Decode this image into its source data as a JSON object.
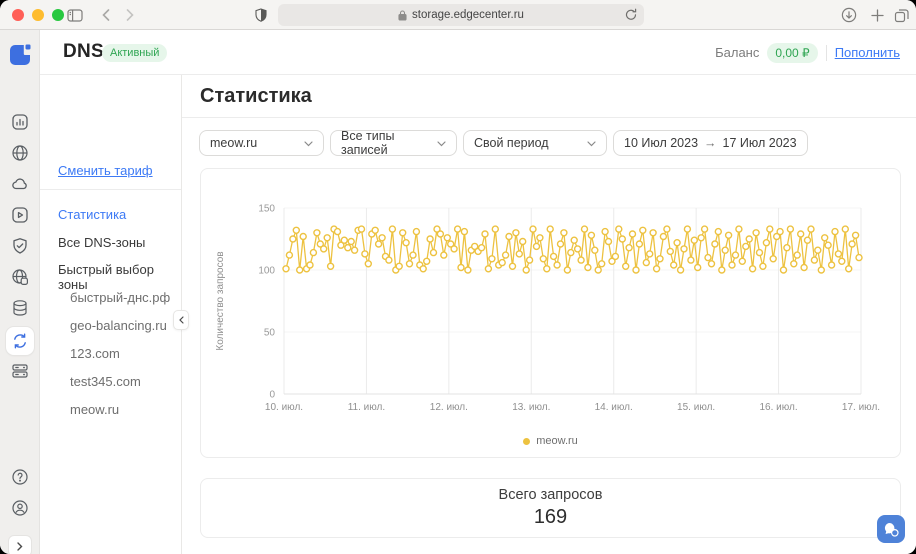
{
  "browser": {
    "url": "storage.edgecenter.ru"
  },
  "colors": {
    "accent_blue": "#3d7af5",
    "series_yellow": "#edc240",
    "badge_green_bg": "#e6f6ea",
    "badge_green_text": "#2fa552"
  },
  "header": {
    "title": "DNS",
    "status_badge": "Активный",
    "balance_label": "Баланс",
    "balance_value": "0,00 ₽",
    "topup_label": "Пополнить"
  },
  "rail": {
    "icons": [
      "logo",
      "statistics",
      "globe",
      "cloud",
      "streaming",
      "security",
      "cdn",
      "storage",
      "dns",
      "hosting",
      "help",
      "profile",
      "expand"
    ]
  },
  "sidebar": {
    "change_tariff": "Сменить тариф",
    "items": [
      {
        "label": "Статистика"
      },
      {
        "label": "Все DNS-зоны"
      },
      {
        "label": "Быстрый выбор зоны"
      }
    ],
    "zones": [
      "быстрый-днс.рф",
      "geo-balancing.ru",
      "123.com",
      "test345.com",
      "meow.ru"
    ]
  },
  "main": {
    "title": "Статистика",
    "filters": {
      "zone": "meow.ru",
      "record_type": "Все типы записей",
      "period": "Свой период",
      "date_from": "10 Июл 2023",
      "date_arrow": "→",
      "date_to": "17 Июл 2023"
    },
    "total_label": "Всего запросов",
    "total_value": "169"
  },
  "chart_data": {
    "type": "line",
    "title": "",
    "xlabel": "",
    "ylabel": "Количество запросов",
    "ylim": [
      0,
      150
    ],
    "y_ticks": [
      0,
      50,
      100,
      150
    ],
    "x_tick_labels": [
      "10. июл.",
      "11. июл.",
      "12. июл.",
      "13. июл.",
      "14. июл.",
      "15. июл.",
      "16. июл.",
      "17. июл."
    ],
    "grid": "vertical-days",
    "legend_position": "bottom-center",
    "legend": [
      {
        "name": "meow.ru",
        "color": "#edc240"
      }
    ],
    "series": [
      {
        "name": "meow.ru",
        "color": "#edc240",
        "values": [
          101,
          112,
          125,
          132,
          100,
          127,
          101,
          104,
          114,
          130,
          121,
          117,
          126,
          103,
          133,
          131,
          120,
          124,
          118,
          123,
          116,
          132,
          133,
          113,
          105,
          129,
          132,
          121,
          126,
          111,
          108,
          133,
          100,
          103,
          130,
          122,
          105,
          112,
          131,
          104,
          101,
          107,
          125,
          114,
          133,
          129,
          112,
          126,
          121,
          117,
          133,
          102,
          131,
          100,
          116,
          119,
          115,
          118,
          129,
          101,
          109,
          133,
          104,
          106,
          112,
          127,
          103,
          130,
          113,
          123,
          100,
          108,
          133,
          119,
          126,
          109,
          101,
          133,
          111,
          104,
          121,
          130,
          100,
          114,
          124,
          117,
          108,
          133,
          102,
          128,
          116,
          100,
          105,
          131,
          123,
          107,
          111,
          133,
          125,
          103,
          118,
          129,
          100,
          121,
          132,
          106,
          113,
          130,
          101,
          109,
          127,
          133,
          115,
          104,
          122,
          100,
          117,
          133,
          108,
          124,
          102,
          126,
          133,
          110,
          105,
          121,
          131,
          100,
          116,
          128,
          104,
          112,
          133,
          107,
          119,
          125,
          101,
          130,
          114,
          103,
          122,
          133,
          109,
          127,
          131,
          100,
          118,
          133,
          105,
          112,
          129,
          102,
          124,
          133,
          108,
          116,
          100,
          126,
          120,
          104,
          131,
          113,
          107,
          133,
          101,
          121,
          128,
          110
        ]
      }
    ]
  }
}
